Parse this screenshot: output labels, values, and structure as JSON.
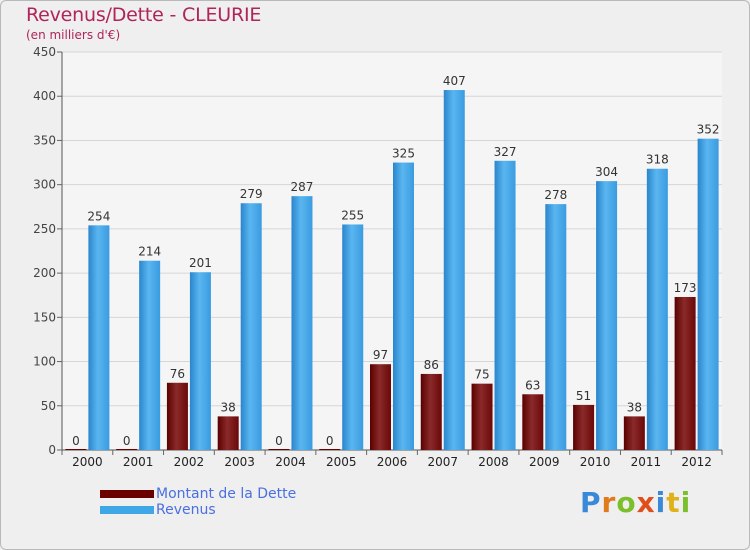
{
  "colors": {
    "dette": "#6b0000",
    "revenus": "#3fa7e6",
    "title": "#b0245a"
  },
  "brand": "Proxiti",
  "chart_data": {
    "type": "bar",
    "title": "Revenus/Dette - CLEURIE",
    "subtitle": "(en milliers d'€)",
    "xlabel": "",
    "ylabel": "",
    "ylim": [
      0,
      450
    ],
    "yticks": [
      0,
      50,
      100,
      150,
      200,
      250,
      300,
      350,
      400,
      450
    ],
    "grid": true,
    "legend_position": "bottom-left",
    "categories": [
      "2000",
      "2001",
      "2002",
      "2003",
      "2004",
      "2005",
      "2006",
      "2007",
      "2008",
      "2009",
      "2010",
      "2011",
      "2012"
    ],
    "series": [
      {
        "name": "Montant de la Dette",
        "values": [
          0,
          0,
          76,
          38,
          0,
          0,
          97,
          86,
          75,
          63,
          51,
          38,
          173
        ]
      },
      {
        "name": "Revenus",
        "values": [
          254,
          214,
          201,
          279,
          287,
          255,
          325,
          407,
          327,
          278,
          304,
          318,
          352
        ]
      }
    ]
  }
}
